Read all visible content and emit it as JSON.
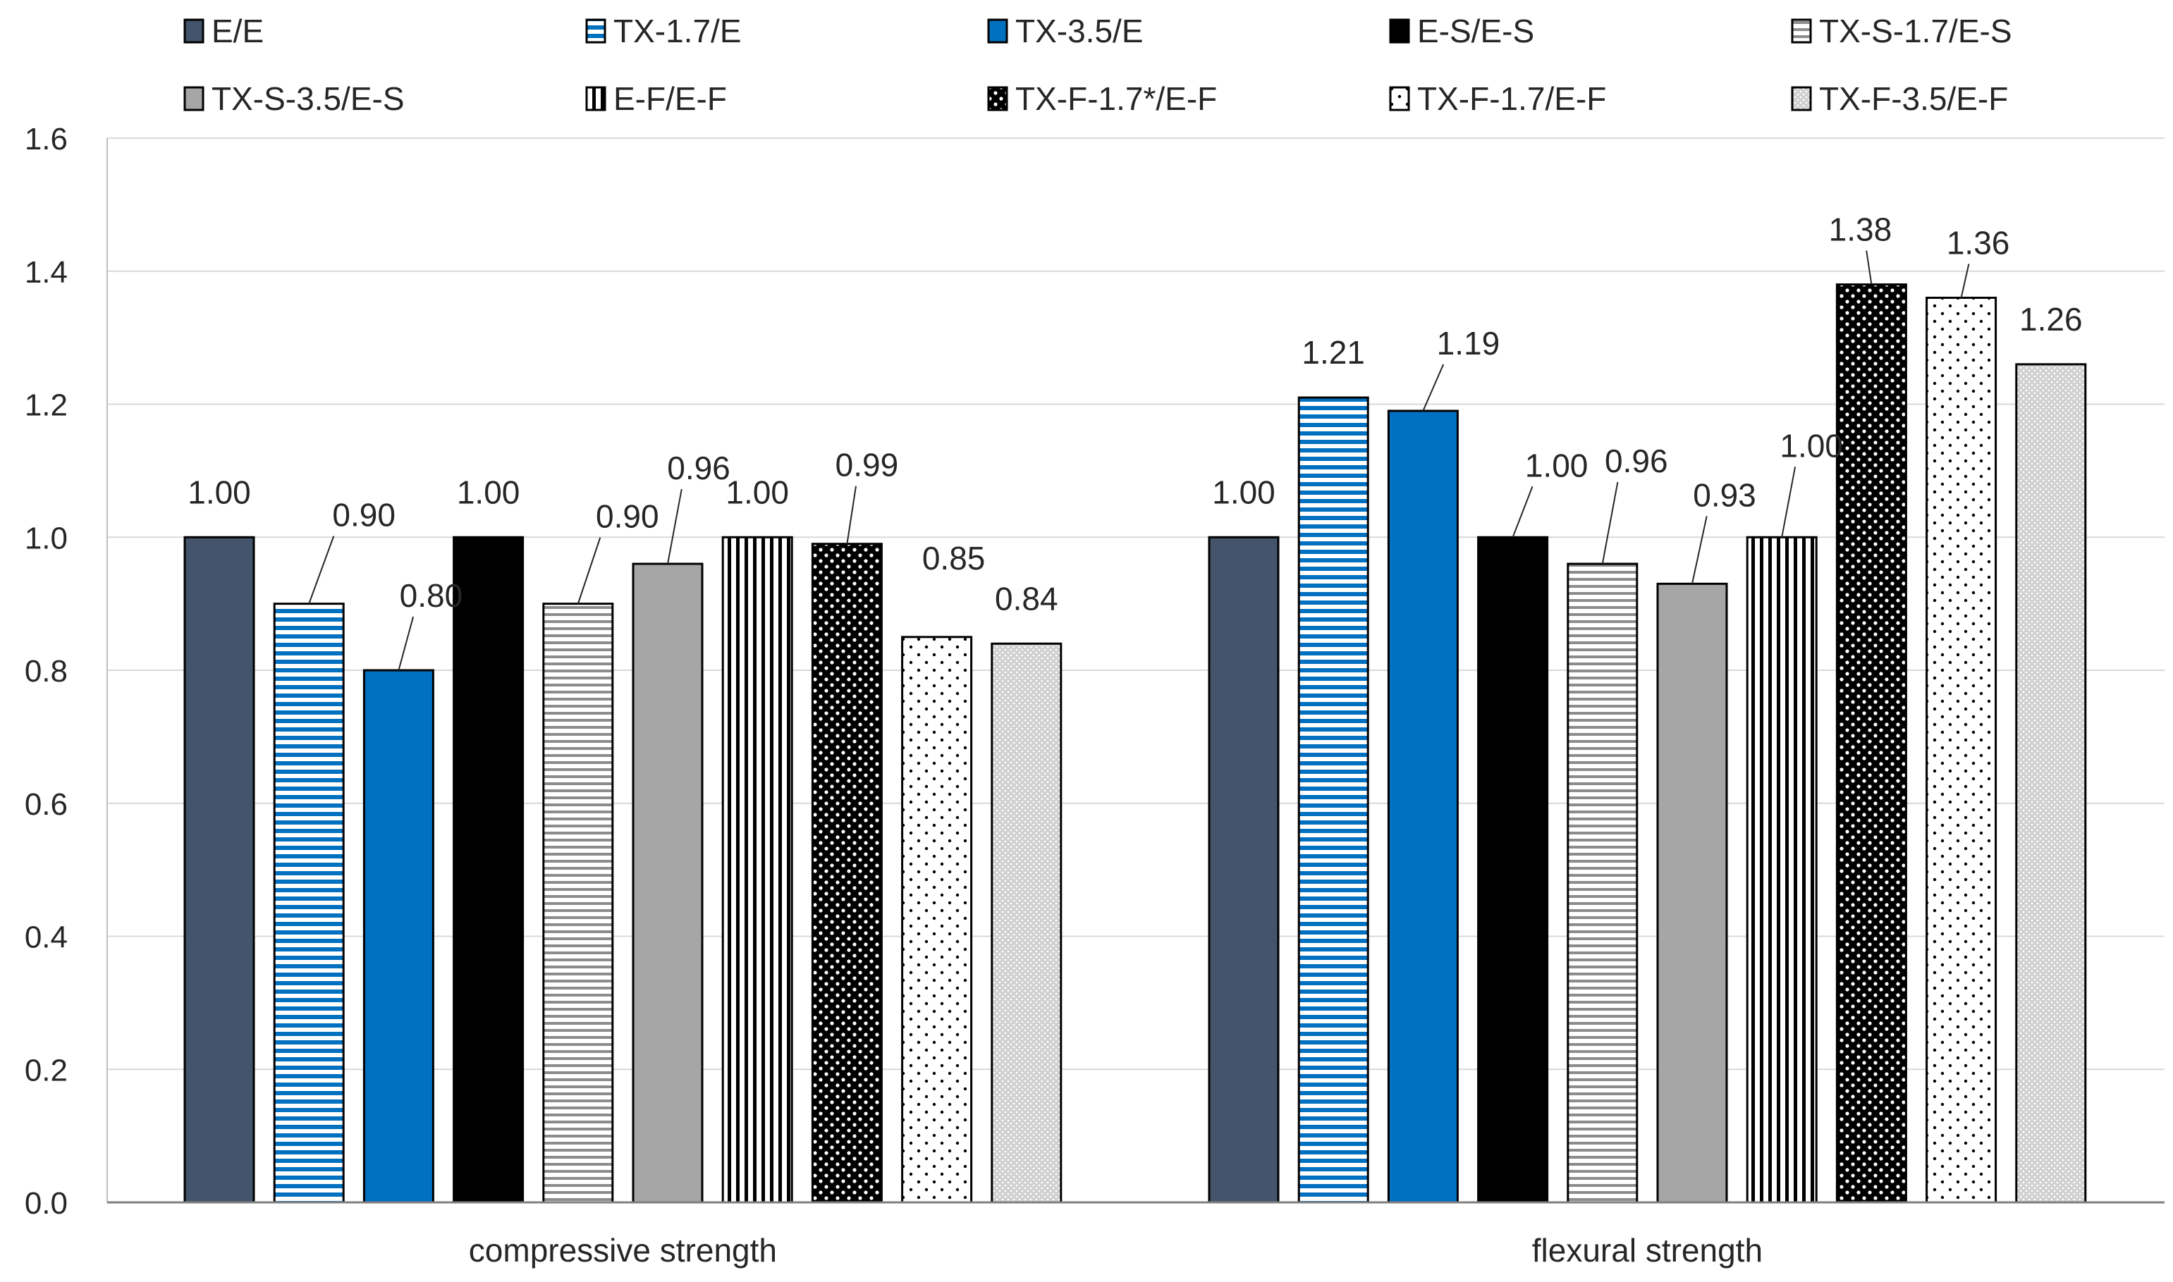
{
  "chart_data": {
    "type": "bar",
    "title": "",
    "xlabel": "",
    "ylabel": "",
    "ylim": [
      0,
      1.6
    ],
    "yticks": [
      "0.0",
      "0.2",
      "0.4",
      "0.6",
      "0.8",
      "1.0",
      "1.2",
      "1.4",
      "1.6"
    ],
    "grid": true,
    "legend_position": "top",
    "categories": [
      "compressive strength",
      "flexural strength"
    ],
    "series": [
      {
        "name": "E/E",
        "pattern": "solid",
        "color": "#44546A",
        "values": [
          1.0,
          1.0
        ],
        "labels": [
          "1.00",
          "1.00"
        ]
      },
      {
        "name": "TX-1.7/E",
        "pattern": "hstripe-blue",
        "color": "#0070C0",
        "values": [
          0.9,
          1.21
        ],
        "labels": [
          "0.90",
          "1.21"
        ]
      },
      {
        "name": "TX-3.5/E",
        "pattern": "solid",
        "color": "#0070C0",
        "values": [
          0.8,
          1.19
        ],
        "labels": [
          "0.80",
          "1.19"
        ]
      },
      {
        "name": "E-S/E-S",
        "pattern": "solid",
        "color": "#000000",
        "values": [
          1.0,
          1.0
        ],
        "labels": [
          "1.00",
          "1.00"
        ]
      },
      {
        "name": "TX-S-1.7/E-S",
        "pattern": "hstripe-gray",
        "color": "#8C8C8C",
        "values": [
          0.9,
          0.96
        ],
        "labels": [
          "0.90",
          "0.96"
        ]
      },
      {
        "name": "TX-S-3.5/E-S",
        "pattern": "solid",
        "color": "#A6A6A6",
        "values": [
          0.96,
          0.93
        ],
        "labels": [
          "0.96",
          "0.93"
        ]
      },
      {
        "name": "E-F/E-F",
        "pattern": "vstripe",
        "color": "#000000",
        "values": [
          1.0,
          1.0
        ],
        "labels": [
          "1.00",
          "1.00"
        ]
      },
      {
        "name": "TX-F-1.7*/E-F",
        "pattern": "dots-dark",
        "color": "#000000",
        "values": [
          0.99,
          1.38
        ],
        "labels": [
          "0.99",
          "1.38"
        ]
      },
      {
        "name": "TX-F-1.7/E-F",
        "pattern": "dots-sparse",
        "color": "#000000",
        "values": [
          0.85,
          1.36
        ],
        "labels": [
          "0.85",
          "1.36"
        ]
      },
      {
        "name": "TX-F-3.5/E-F",
        "pattern": "dots-fine",
        "color": "#BFBFBF",
        "values": [
          0.84,
          1.26
        ],
        "labels": [
          "0.84",
          "1.26"
        ]
      }
    ]
  }
}
